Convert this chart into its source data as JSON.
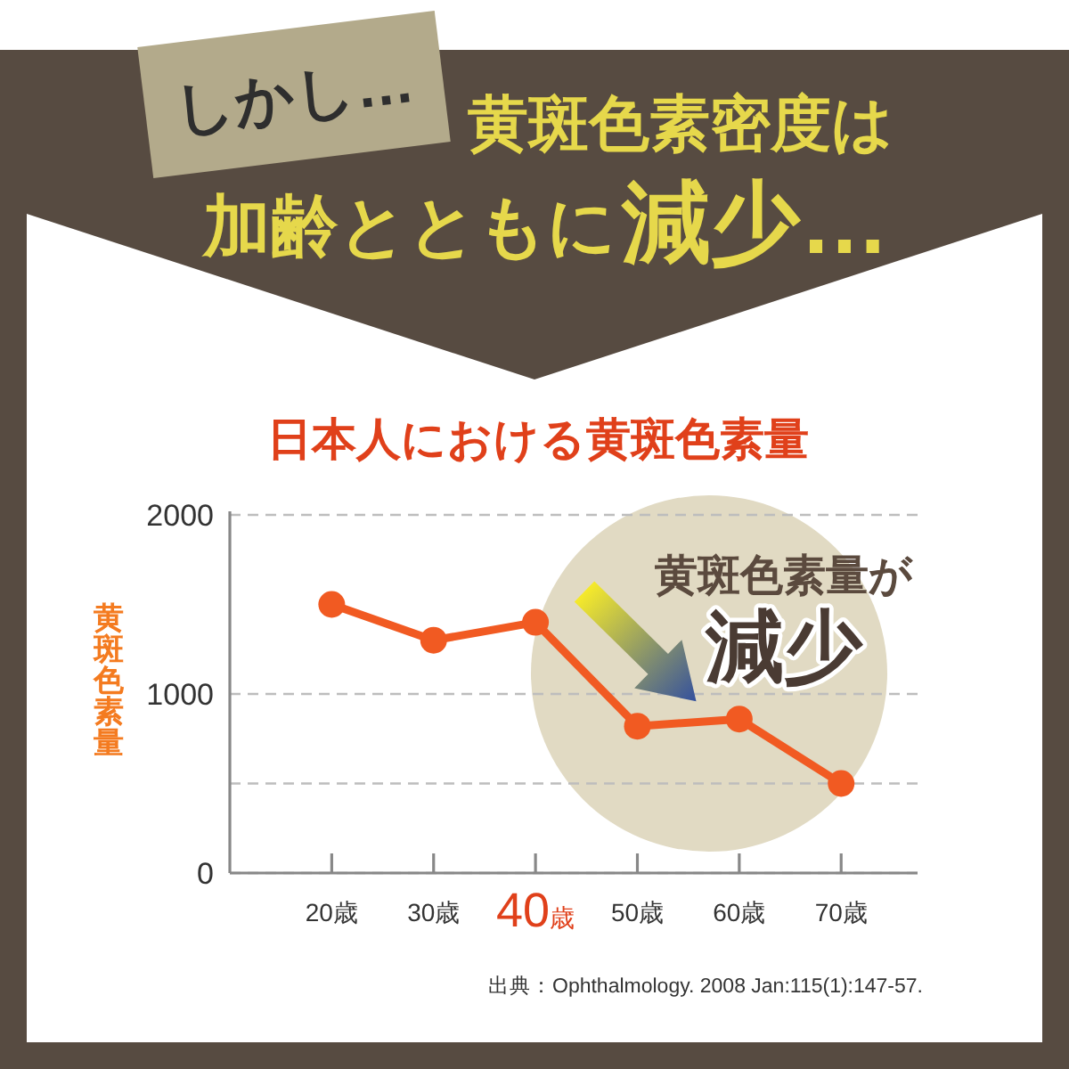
{
  "chart_data": {
    "type": "line",
    "title": "黄斑色素密度は",
    "subtitle": "日本人における黄斑色素量",
    "ylabel": "黄斑色素量",
    "categories": [
      "20歳",
      "30歳",
      "40歳",
      "50歳",
      "60歳",
      "70歳"
    ],
    "series": [
      {
        "color": "#f15a22",
        "values": [
          1500,
          1300,
          1400,
          820,
          860,
          500
        ]
      }
    ],
    "ylim": [
      0,
      2000
    ],
    "yticks": [
      0,
      {
        "value": 500,
        "label": null
      },
      1000,
      2000
    ],
    "grid": "y",
    "marker": "circle",
    "line_style": "solid",
    "annotations": [
      "しかし…",
      "加齢とともに",
      "減少…",
      "黄斑色素量が",
      "減少",
      "出典：Ophthalmology. 2008 Jan:115(1):147-57."
    ]
  }
}
